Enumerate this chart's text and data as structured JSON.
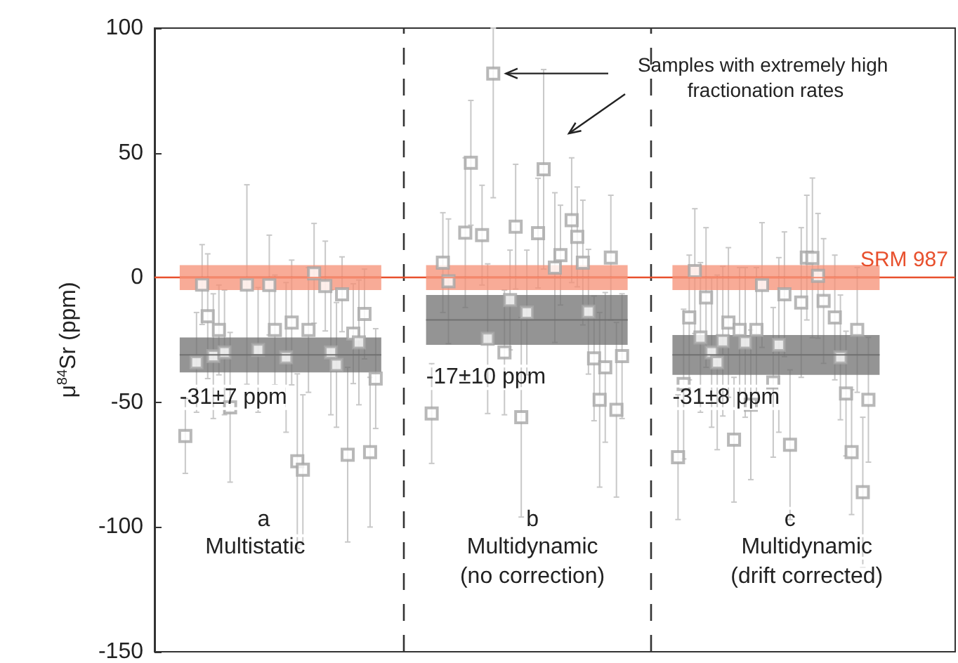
{
  "chart_data": {
    "type": "scatter",
    "ylabel": "μ$^{84}$Sr (ppm)",
    "ylim": [
      -150,
      100
    ],
    "yticks": [
      -150,
      -100,
      -50,
      0,
      50,
      100
    ],
    "tick_labels": "y",
    "grid": false,
    "categories": [
      null,
      null,
      null,
      null,
      null,
      null,
      null,
      null,
      null,
      null,
      null,
      null,
      null,
      null,
      null,
      null,
      null,
      null,
      null,
      null,
      null,
      null,
      null,
      null,
      null,
      null,
      null,
      null,
      null,
      null,
      null,
      null,
      null,
      null,
      null,
      null,
      null,
      null,
      null,
      null,
      null,
      null,
      null,
      null,
      null,
      null,
      null,
      null,
      null,
      null,
      null,
      null,
      null,
      null,
      null,
      null,
      null,
      null,
      null,
      null,
      null,
      null,
      null,
      null,
      null,
      null,
      null,
      null,
      null,
      null,
      null,
      null,
      null,
      null,
      null,
      null,
      null,
      null,
      null,
      null,
      null,
      null,
      null,
      null,
      null,
      null,
      null,
      null,
      null,
      null,
      null,
      null,
      null,
      null,
      null,
      null,
      null,
      null,
      null,
      null,
      null,
      null,
      null,
      null,
      null,
      null,
      null,
      null,
      null,
      null,
      null,
      null,
      null,
      null,
      null,
      null,
      null,
      null,
      null,
      null,
      null,
      null,
      null,
      null,
      null,
      null,
      null,
      null,
      null,
      null,
      null,
      null,
      null,
      null,
      null,
      null,
      null,
      null,
      null,
      null,
      null,
      null,
      null
    ],
    "series": [
      {
        "color": "#a6a6a6",
        "marker": "square",
        "values": [
          null,
          null,
          null,
          null,
          null,
          -63.5,
          null,
          -34,
          -2.8,
          -15.5,
          -31.5,
          -21,
          -30,
          -52,
          null,
          null,
          -2.8,
          null,
          -29,
          null,
          -3,
          -21,
          null,
          -32,
          -18,
          -73.6,
          -77,
          -21,
          1.7,
          null,
          -3.4,
          -30,
          -35,
          -6.7,
          -71,
          -22.5,
          -26,
          -14.6,
          -70,
          -40.5,
          null,
          null,
          null,
          null,
          null,
          null,
          null,
          null,
          null,
          -54.5,
          null,
          6,
          -1.5,
          null,
          null,
          18,
          46,
          null,
          17,
          -24.5,
          81.8,
          null,
          -30,
          -9,
          20.4,
          -56,
          -14,
          null,
          17.8,
          43.4,
          null,
          4,
          9,
          null,
          23,
          16.3,
          6,
          -13.7,
          -32.4,
          -49,
          -36,
          8,
          -53,
          -31.5,
          null,
          null,
          null,
          null,
          null,
          null,
          null,
          null,
          null,
          -72,
          -42.7,
          -16,
          2.6,
          -24,
          -8,
          -30,
          -34,
          -25.5,
          -18,
          -65,
          -21,
          -26,
          -51,
          -21,
          -3,
          null,
          -42,
          -27,
          -6.7,
          -67,
          null,
          -10,
          8,
          7.9,
          0.7,
          -9.4,
          null,
          -16,
          -32,
          -46.5,
          -70,
          -21,
          -86,
          -49,
          null,
          null,
          null,
          null,
          null,
          null,
          null,
          null,
          null,
          null,
          null,
          null,
          null,
          null,
          null
        ],
        "errors": [
          null,
          null,
          null,
          null,
          null,
          15,
          null,
          20,
          16,
          25,
          25,
          18,
          25,
          30,
          null,
          null,
          40,
          null,
          25,
          null,
          20,
          22,
          null,
          30,
          25,
          35,
          30,
          25,
          20,
          null,
          18,
          25,
          25,
          15,
          35,
          20,
          25,
          18,
          30,
          20,
          null,
          null,
          null,
          null,
          null,
          null,
          null,
          null,
          null,
          20,
          null,
          20,
          25,
          null,
          null,
          30,
          25,
          null,
          20,
          30,
          [
            32,
            100
          ],
          null,
          25,
          20,
          25,
          40,
          25,
          null,
          22,
          40,
          null,
          30,
          20,
          null,
          25,
          20,
          25,
          25,
          25,
          35,
          30,
          25,
          35,
          25,
          null,
          null,
          null,
          null,
          null,
          null,
          null,
          null,
          null,
          25,
          30,
          25,
          25,
          30,
          28,
          30,
          35,
          30,
          30,
          25,
          25,
          30,
          30,
          25,
          25,
          null,
          30,
          35,
          25,
          30,
          null,
          30,
          25,
          32,
          25,
          25,
          null,
          25,
          25,
          25,
          25,
          25,
          30,
          25,
          null,
          null,
          null,
          null,
          null,
          null,
          null,
          null,
          null,
          null,
          null,
          null,
          null,
          null,
          null
        ]
      },
      {
        "type": "line",
        "color": "#f58f74",
        "values": [
          null,
          null,
          null,
          null,
          0,
          0,
          0,
          0,
          0,
          0,
          0,
          0,
          0,
          0,
          0,
          0,
          0,
          0,
          0,
          0,
          0,
          0,
          0,
          0,
          0,
          0,
          0,
          0,
          0,
          0,
          0,
          0,
          0,
          0,
          0,
          0,
          0,
          0,
          0,
          0,
          0,
          null,
          null,
          null,
          null,
          null,
          null,
          null,
          0,
          0,
          0,
          0,
          0,
          0,
          0,
          0,
          0,
          0,
          0,
          0,
          0,
          0,
          0,
          0,
          0,
          0,
          0,
          0,
          0,
          0,
          0,
          0,
          0,
          0,
          0,
          0,
          0,
          0,
          0,
          0,
          0,
          0,
          0,
          0,
          0,
          null,
          null,
          null,
          null,
          null,
          null,
          null,
          0,
          0,
          0,
          0,
          0,
          0,
          0,
          0,
          0,
          0,
          0,
          0,
          0,
          0,
          0,
          0,
          0,
          0,
          0,
          0,
          0,
          0,
          0,
          0,
          0,
          0,
          0,
          0,
          0,
          0,
          0,
          0,
          0,
          0,
          0,
          0,
          0,
          0,
          null,
          null,
          null,
          null,
          null,
          null,
          null,
          null,
          null,
          null,
          null,
          null,
          null
        ],
        "lower": [
          null,
          null,
          null,
          null,
          -5,
          -5,
          -5,
          -5,
          -5,
          -5,
          -5,
          -5,
          -5,
          -5,
          -5,
          -5,
          -5,
          -5,
          -5,
          -5,
          -5,
          -5,
          -5,
          -5,
          -5,
          -5,
          -5,
          -5,
          -5,
          -5,
          -5,
          -5,
          -5,
          -5,
          -5,
          -5,
          -5,
          -5,
          -5,
          -5,
          -5,
          null,
          null,
          null,
          null,
          null,
          null,
          null,
          -5,
          -5,
          -5,
          -5,
          -5,
          -5,
          -5,
          -5,
          -5,
          -5,
          -5,
          -5,
          -5,
          -5,
          -5,
          -5,
          -5,
          -5,
          -5,
          -5,
          -5,
          -5,
          -5,
          -5,
          -5,
          -5,
          -5,
          -5,
          -5,
          -5,
          -5,
          -5,
          -5,
          -5,
          -5,
          -5,
          -5,
          null,
          null,
          null,
          null,
          null,
          null,
          null,
          -5,
          -5,
          -5,
          -5,
          -5,
          -5,
          -5,
          -5,
          -5,
          -5,
          -5,
          -5,
          -5,
          -5,
          -5,
          -5,
          -5,
          -5,
          -5,
          -5,
          -5,
          -5,
          -5,
          -5,
          -5,
          -5,
          -5,
          -5,
          -5,
          -5,
          -5,
          -5,
          -5,
          -5,
          -5,
          -5,
          -5,
          -5,
          null,
          null,
          null,
          null,
          null,
          null,
          null,
          null,
          null,
          null,
          null,
          null,
          null
        ],
        "upper": [
          null,
          null,
          null,
          null,
          5,
          5,
          5,
          5,
          5,
          5,
          5,
          5,
          5,
          5,
          5,
          5,
          5,
          5,
          5,
          5,
          5,
          5,
          5,
          5,
          5,
          5,
          5,
          5,
          5,
          5,
          5,
          5,
          5,
          5,
          5,
          5,
          5,
          5,
          5,
          5,
          5,
          null,
          null,
          null,
          null,
          null,
          null,
          null,
          5,
          5,
          5,
          5,
          5,
          5,
          5,
          5,
          5,
          5,
          5,
          5,
          5,
          5,
          5,
          5,
          5,
          5,
          5,
          5,
          5,
          5,
          5,
          5,
          5,
          5,
          5,
          5,
          5,
          5,
          5,
          5,
          5,
          5,
          5,
          5,
          5,
          null,
          null,
          null,
          null,
          null,
          null,
          null,
          5,
          5,
          5,
          5,
          5,
          5,
          5,
          5,
          5,
          5,
          5,
          5,
          5,
          5,
          5,
          5,
          5,
          5,
          5,
          5,
          5,
          5,
          5,
          5,
          5,
          5,
          5,
          5,
          5,
          5,
          5,
          5,
          5,
          5,
          5,
          5,
          5,
          5,
          null,
          null,
          null,
          null,
          null,
          null,
          null,
          null,
          null,
          null,
          null,
          null,
          null
        ]
      },
      {
        "type": "line",
        "color": "#707070",
        "values": [
          null,
          null,
          null,
          null,
          -31,
          -31,
          -31,
          -31,
          -31,
          -31,
          -31,
          -31,
          -31,
          -31,
          -31,
          -31,
          -31,
          -31,
          -31,
          -31,
          -31,
          -31,
          -31,
          -31,
          -31,
          -31,
          -31,
          -31,
          -31,
          -31,
          -31,
          -31,
          -31,
          -31,
          -31,
          -31,
          -31,
          -31,
          -31,
          -31,
          -31,
          null,
          null,
          null,
          null,
          null,
          null,
          null,
          -17,
          -17,
          -17,
          -17,
          -17,
          -17,
          -17,
          -17,
          -17,
          -17,
          -17,
          -17,
          -17,
          -17,
          -17,
          -17,
          -17,
          -17,
          -17,
          -17,
          -17,
          -17,
          -17,
          -17,
          -17,
          -17,
          -17,
          -17,
          -17,
          -17,
          -17,
          -17,
          -17,
          -17,
          -17,
          -17,
          -17,
          null,
          null,
          null,
          null,
          null,
          null,
          null,
          -31,
          -31,
          -31,
          -31,
          -31,
          -31,
          -31,
          -31,
          -31,
          -31,
          -31,
          -31,
          -31,
          -31,
          -31,
          -31,
          -31,
          -31,
          -31,
          -31,
          -31,
          -31,
          -31,
          -31,
          -31,
          -31,
          -31,
          -31,
          -31,
          -31,
          -31,
          -31,
          -31,
          -31,
          -31,
          -31,
          -31,
          -31,
          null,
          null,
          null,
          null,
          null,
          null,
          null,
          null,
          null,
          null,
          null,
          null,
          null
        ],
        "lower": [
          null,
          null,
          null,
          null,
          -38,
          -38,
          -38,
          -38,
          -38,
          -38,
          -38,
          -38,
          -38,
          -38,
          -38,
          -38,
          -38,
          -38,
          -38,
          -38,
          -38,
          -38,
          -38,
          -38,
          -38,
          -38,
          -38,
          -38,
          -38,
          -38,
          -38,
          -38,
          -38,
          -38,
          -38,
          -38,
          -38,
          -38,
          -38,
          -38,
          -38,
          null,
          null,
          null,
          null,
          null,
          null,
          null,
          -27,
          -27,
          -27,
          -27,
          -27,
          -27,
          -27,
          -27,
          -27,
          -27,
          -27,
          -27,
          -27,
          -27,
          -27,
          -27,
          -27,
          -27,
          -27,
          -27,
          -27,
          -27,
          -27,
          -27,
          -27,
          -27,
          -27,
          -27,
          -27,
          -27,
          -27,
          -27,
          -27,
          -27,
          -27,
          -27,
          -27,
          null,
          null,
          null,
          null,
          null,
          null,
          null,
          -39,
          -39,
          -39,
          -39,
          -39,
          -39,
          -39,
          -39,
          -39,
          -39,
          -39,
          -39,
          -39,
          -39,
          -39,
          -39,
          -39,
          -39,
          -39,
          -39,
          -39,
          -39,
          -39,
          -39,
          -39,
          -39,
          -39,
          -39,
          -39,
          -39,
          -39,
          -39,
          -39,
          -39,
          -39,
          -39,
          -39,
          -39,
          null,
          null,
          null,
          null,
          null,
          null,
          null,
          null,
          null,
          null,
          null,
          null,
          null
        ],
        "upper": [
          null,
          null,
          null,
          null,
          -24,
          -24,
          -24,
          -24,
          -24,
          -24,
          -24,
          -24,
          -24,
          -24,
          -24,
          -24,
          -24,
          -24,
          -24,
          -24,
          -24,
          -24,
          -24,
          -24,
          -24,
          -24,
          -24,
          -24,
          -24,
          -24,
          -24,
          -24,
          -24,
          -24,
          -24,
          -24,
          -24,
          -24,
          -24,
          -24,
          -24,
          null,
          null,
          null,
          null,
          null,
          null,
          null,
          -7,
          -7,
          -7,
          -7,
          -7,
          -7,
          -7,
          -7,
          -7,
          -7,
          -7,
          -7,
          -7,
          -7,
          -7,
          -7,
          -7,
          -7,
          -7,
          -7,
          -7,
          -7,
          -7,
          -7,
          -7,
          -7,
          -7,
          -7,
          -7,
          -7,
          -7,
          -7,
          -7,
          -7,
          -7,
          -7,
          -7,
          null,
          null,
          null,
          null,
          null,
          null,
          null,
          -23,
          -23,
          -23,
          -23,
          -23,
          -23,
          -23,
          -23,
          -23,
          -23,
          -23,
          -23,
          -23,
          -23,
          -23,
          -23,
          -23,
          -23,
          -23,
          -23,
          -23,
          -23,
          -23,
          -23,
          -23,
          -23,
          -23,
          -23,
          -23,
          -23,
          -23,
          -23,
          -23,
          -23,
          -23,
          -23,
          -23,
          -23,
          null,
          null,
          null,
          null,
          null,
          null,
          null,
          null,
          null,
          null,
          null,
          null,
          null
        ]
      }
    ],
    "ref_lines": [
      {
        "axis": "y",
        "value": 0,
        "label": "SRM 987",
        "color": "#e8502d"
      }
    ],
    "annotations": [
      "-31±7 ppm",
      "-17±10 ppm",
      "-31±8 ppm",
      "a",
      "Multistatic",
      "b",
      "Multidynamic",
      "(no correction)",
      "c",
      "Multidynamic",
      "(drift corrected)",
      "Samples with extremely high fractionation rates"
    ]
  }
}
